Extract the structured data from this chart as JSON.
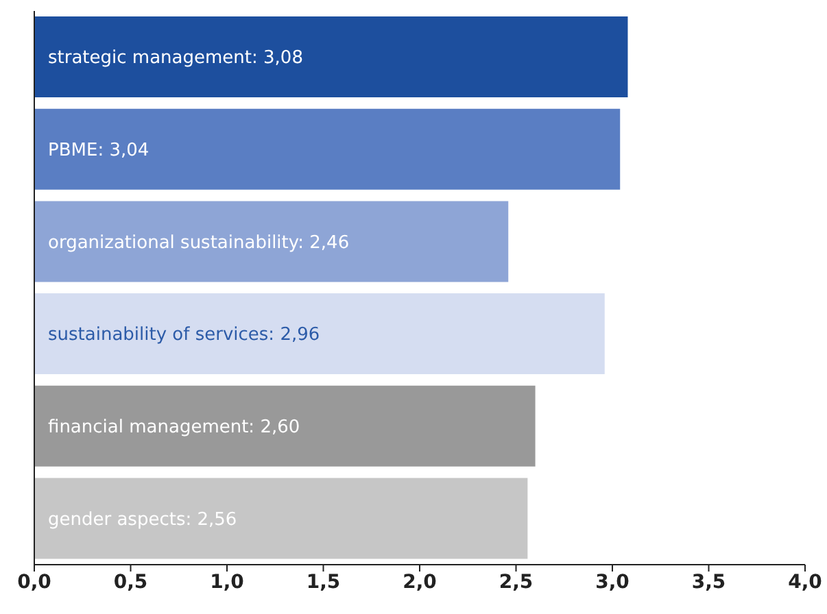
{
  "chart_data": {
    "type": "bar",
    "orientation": "horizontal",
    "categories": [
      null,
      null,
      null,
      null,
      null,
      null
    ],
    "values": [
      3.08,
      3.04,
      2.46,
      2.96,
      2.6,
      2.56
    ],
    "value_labels": [
      "strategic management: 3,08",
      "PBME: 3,04",
      "organizational sustainability: 2,46",
      "sustainability of services: 2,96",
      "financial management: 2,60",
      "gender aspects: 2,56"
    ],
    "colors": [
      "#1d4f9e",
      "#5a7ec3",
      "#8ea5d6",
      "#d5ddf1",
      "#999999",
      "#c6c6c6"
    ],
    "xlim": [
      0,
      4
    ],
    "xticks": [
      {
        "value": 0,
        "label": "0,0"
      },
      {
        "value": 0.5,
        "label": "0,5"
      },
      {
        "value": 1,
        "label": "1,0"
      },
      {
        "value": 1.5,
        "label": "1,5"
      },
      {
        "value": 2,
        "label": "2,0"
      },
      {
        "value": 2.5,
        "label": "2,5"
      },
      {
        "value": 3,
        "label": "3,0"
      },
      {
        "value": 3.5,
        "label": "3,5"
      },
      {
        "value": 4,
        "label": "4,0"
      }
    ],
    "tick_labels": "x",
    "grid": false,
    "legend": false
  }
}
